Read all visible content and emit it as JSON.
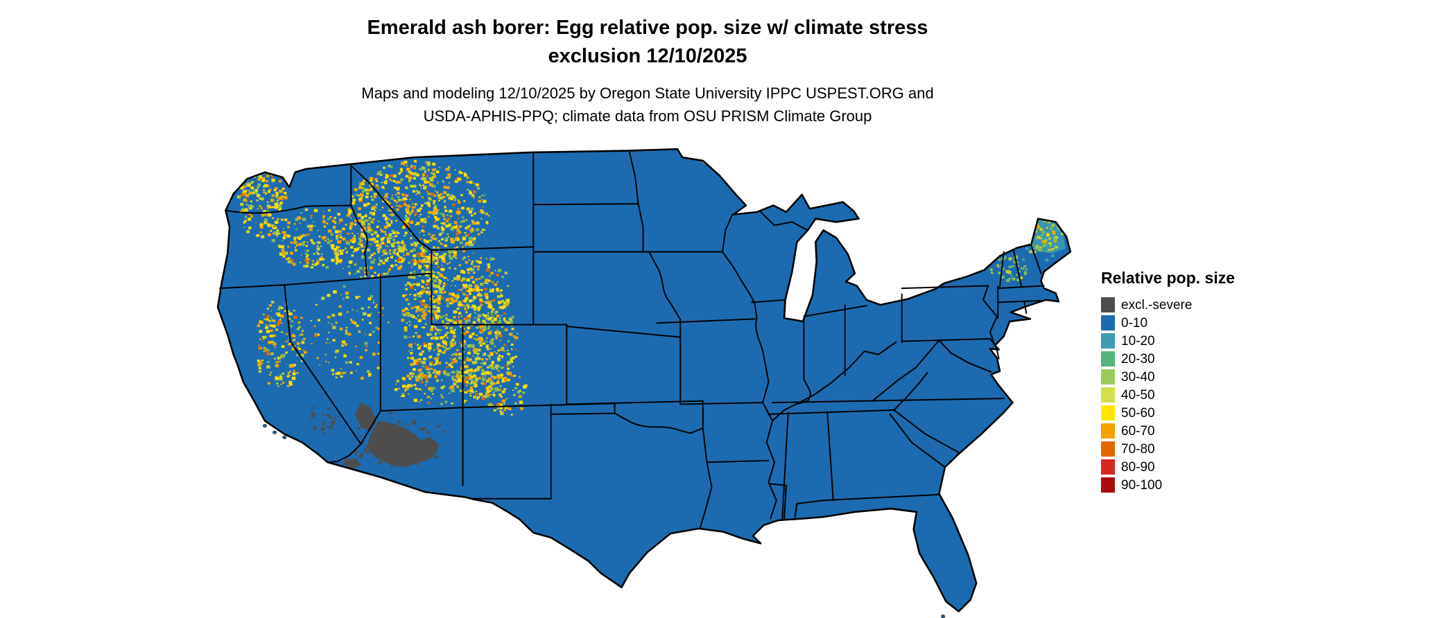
{
  "header": {
    "title_line1": "Emerald ash borer: Egg relative pop. size w/ climate stress",
    "title_line2": "exclusion 12/10/2025",
    "subtitle_line1": "Maps and modeling 12/10/2025 by Oregon State University IPPC USPEST.ORG and",
    "subtitle_line2": "USDA-APHIS-PPQ; climate data from OSU PRISM Climate Group"
  },
  "legend": {
    "title": "Relative pop. size",
    "items": [
      {
        "label": "excl.-severe",
        "color": "#4D4D4D"
      },
      {
        "label": "0-10",
        "color": "#1C6BB0"
      },
      {
        "label": "10-20",
        "color": "#3D9CB0"
      },
      {
        "label": "20-30",
        "color": "#55B47E"
      },
      {
        "label": "30-40",
        "color": "#9CCB5C"
      },
      {
        "label": "40-50",
        "color": "#D4E04A"
      },
      {
        "label": "50-60",
        "color": "#FFE800"
      },
      {
        "label": "60-70",
        "color": "#F5A300"
      },
      {
        "label": "70-80",
        "color": "#E06900"
      },
      {
        "label": "80-90",
        "color": "#D7281D"
      },
      {
        "label": "90-100",
        "color": "#A80D0D"
      }
    ]
  },
  "map": {
    "region": "Contiguous United States",
    "base_class": "0-10",
    "border_color": "#000000",
    "background": "#FFFFFF",
    "speckle_colors": {
      "yellow": "#FFDE00",
      "amber": "#F0A800",
      "olive": "#C2CC3A",
      "green": "#7CBB5E",
      "orange": "#E06900",
      "teal": "#3D9CB0",
      "gray": "#4D4D4D"
    }
  }
}
